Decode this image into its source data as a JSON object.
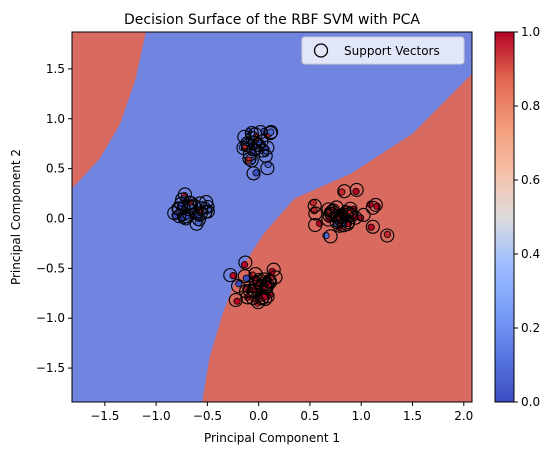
{
  "chart_data": {
    "type": "scatter",
    "title": "Decision Surface of the RBF SVM with PCA",
    "xlabel": "Principal Component 1",
    "ylabel": "Principal Component 2",
    "xlim": [
      -1.82,
      2.08
    ],
    "ylim": [
      -1.84,
      1.87
    ],
    "x_ticks": [
      -1.5,
      -1.0,
      -0.5,
      0.0,
      0.5,
      1.0,
      1.5,
      2.0
    ],
    "x_tick_labels": [
      "−1.5",
      "−1.0",
      "−0.5",
      "0.0",
      "0.5",
      "1.0",
      "1.5",
      "2.0"
    ],
    "y_ticks": [
      -1.5,
      -1.0,
      -0.5,
      0.0,
      0.5,
      1.0,
      1.5
    ],
    "y_tick_labels": [
      "−1.5",
      "−1.0",
      "−0.5",
      "0.0",
      "0.5",
      "1.0",
      "1.5"
    ],
    "grid": false,
    "legend": {
      "position": "top-right",
      "entries": [
        "Support Vectors"
      ]
    },
    "colorbar": {
      "range": [
        0.0,
        1.0
      ],
      "ticks": [
        0.0,
        0.2,
        0.4,
        0.6,
        0.8,
        1.0
      ],
      "tick_labels": [
        "0.0",
        "0.2",
        "0.4",
        "0.6",
        "0.8",
        "1.0"
      ],
      "colormap": "coolwarm"
    },
    "decision_surface": {
      "class_0_color": "#7084e0",
      "class_1_color": "#d86a5f",
      "boundary_1": [
        [
          -1.82,
          0.3
        ],
        [
          -1.55,
          0.6
        ],
        [
          -1.35,
          0.95
        ],
        [
          -1.2,
          1.4
        ],
        [
          -1.1,
          1.87
        ]
      ],
      "boundary_2": [
        [
          -0.55,
          -1.84
        ],
        [
          -0.48,
          -1.4
        ],
        [
          -0.35,
          -0.95
        ],
        [
          -0.2,
          -0.55
        ],
        [
          0.05,
          -0.15
        ],
        [
          0.35,
          0.2
        ],
        [
          0.9,
          0.45
        ],
        [
          1.5,
          0.85
        ],
        [
          2.08,
          1.45
        ]
      ]
    },
    "clusters": [
      {
        "name": "cluster-a",
        "cx": 0.0,
        "cy": 0.72,
        "sx": 0.08,
        "sy": 0.1,
        "n": 22,
        "point_colors": [
          "#4e68d6",
          "#3b4cc0",
          "#c0282f"
        ]
      },
      {
        "name": "cluster-b",
        "cx": -0.66,
        "cy": 0.08,
        "sx": 0.1,
        "sy": 0.06,
        "n": 26,
        "point_colors": [
          "#4e68d6",
          "#3b4cc0",
          "#c0282f"
        ]
      },
      {
        "name": "cluster-c",
        "cx": -0.02,
        "cy": -0.68,
        "sx": 0.1,
        "sy": 0.1,
        "n": 30,
        "point_colors": [
          "#c0282f",
          "#b40426",
          "#3b4cc0"
        ]
      },
      {
        "name": "cluster-d",
        "cx": 0.82,
        "cy": 0.04,
        "sx": 0.16,
        "sy": 0.1,
        "n": 34,
        "point_colors": [
          "#c0282f",
          "#b40426",
          "#4e68d6"
        ]
      }
    ],
    "colors": {
      "blue_dark": "#3b4cc0",
      "red_dark": "#b40426",
      "text": "#000000"
    }
  }
}
